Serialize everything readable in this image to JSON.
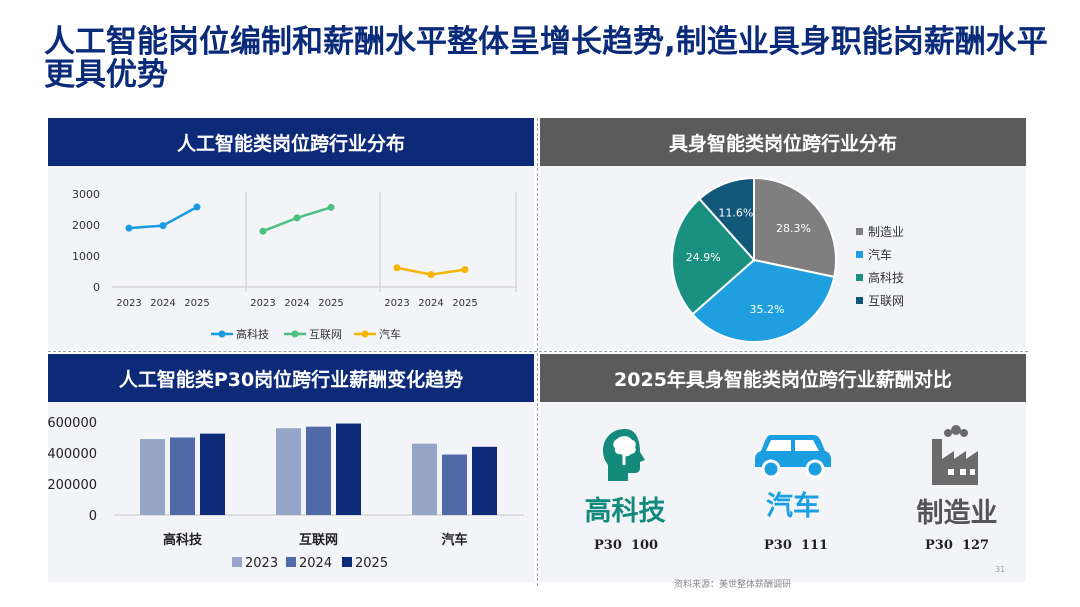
{
  "page": {
    "title": "人工智能岗位编制和薪酬水平整体呈增长趋势,制造业具身职能岗薪酬水平更具优势",
    "source": "资料来源：美世整体薪酬调研",
    "page_number": "31"
  },
  "panels": {
    "p1_header": "人工智能类岗位跨行业分布",
    "p2_header": "具身智能类岗位跨行业分布",
    "p3_header": "人工智能类P30岗位跨行业薪酬变化趋势",
    "p4_header": "2025年具身智能类岗位跨行业薪酬对比"
  },
  "colors": {
    "title": "#0a2a7a",
    "blue_header": "#0d2a78",
    "gray_header": "#5b5b5b",
    "line_gaoke": "#1a9ae0",
    "line_hulian": "#4cc07e",
    "line_qiche": "#f4b400",
    "pie_zhizao": "#7f7f7f",
    "pie_qiche": "#1f9fe0",
    "pie_gaoke": "#1a9080",
    "pie_hulian": "#11577a",
    "bar_2023": "#95a6c8",
    "bar_2024": "#4f6aa6",
    "bar_2025": "#0d2a78",
    "icon_gaoke": "#138a7c",
    "icon_qiche": "#1b9fe0",
    "icon_zhizao": "#6b6b6b"
  },
  "icons": {
    "gaoke": "brain-head-icon",
    "qiche": "car-icon",
    "zhizao": "factory-icon"
  },
  "chart_data": [
    {
      "type": "line",
      "panels": [
        "高科技",
        "互联网",
        "汽车"
      ],
      "x": [
        "2023",
        "2024",
        "2025"
      ],
      "ylim": [
        0,
        3000
      ],
      "yticks": [
        "3000",
        "2000",
        "1000",
        "0"
      ],
      "series": [
        {
          "name": "高科技",
          "values": [
            1900,
            1980,
            2580
          ]
        },
        {
          "name": "互联网",
          "values": [
            1800,
            2230,
            2570
          ]
        },
        {
          "name": "汽车",
          "values": [
            620,
            400,
            560
          ]
        }
      ],
      "legend": "bottom"
    },
    {
      "type": "pie",
      "slices": [
        {
          "name": "制造业",
          "value": 28.3,
          "label": "28.3%"
        },
        {
          "name": "汽车",
          "value": 35.2,
          "label": "35.2%"
        },
        {
          "name": "高科技",
          "value": 24.9,
          "label": "24.9%"
        },
        {
          "name": "互联网",
          "value": 11.6,
          "label": "11.6%"
        }
      ],
      "legend": "right"
    },
    {
      "type": "bar",
      "categories": [
        "高科技",
        "互联网",
        "汽车"
      ],
      "ylim": [
        0,
        600000
      ],
      "yticks": [
        "600000",
        "400000",
        "200000",
        "0"
      ],
      "series": [
        {
          "name": "2023",
          "values": [
            490000,
            560000,
            460000
          ]
        },
        {
          "name": "2024",
          "values": [
            500000,
            570000,
            390000
          ]
        },
        {
          "name": "2025",
          "values": [
            525000,
            590000,
            440000
          ]
        }
      ],
      "legend": "bottom"
    },
    {
      "type": "table",
      "items": [
        {
          "industry": "高科技",
          "p30_label": "P30",
          "p30_value": "100"
        },
        {
          "industry": "汽车",
          "p30_label": "P30",
          "p30_value": "111"
        },
        {
          "industry": "制造业",
          "p30_label": "P30",
          "p30_value": "127"
        }
      ]
    }
  ]
}
